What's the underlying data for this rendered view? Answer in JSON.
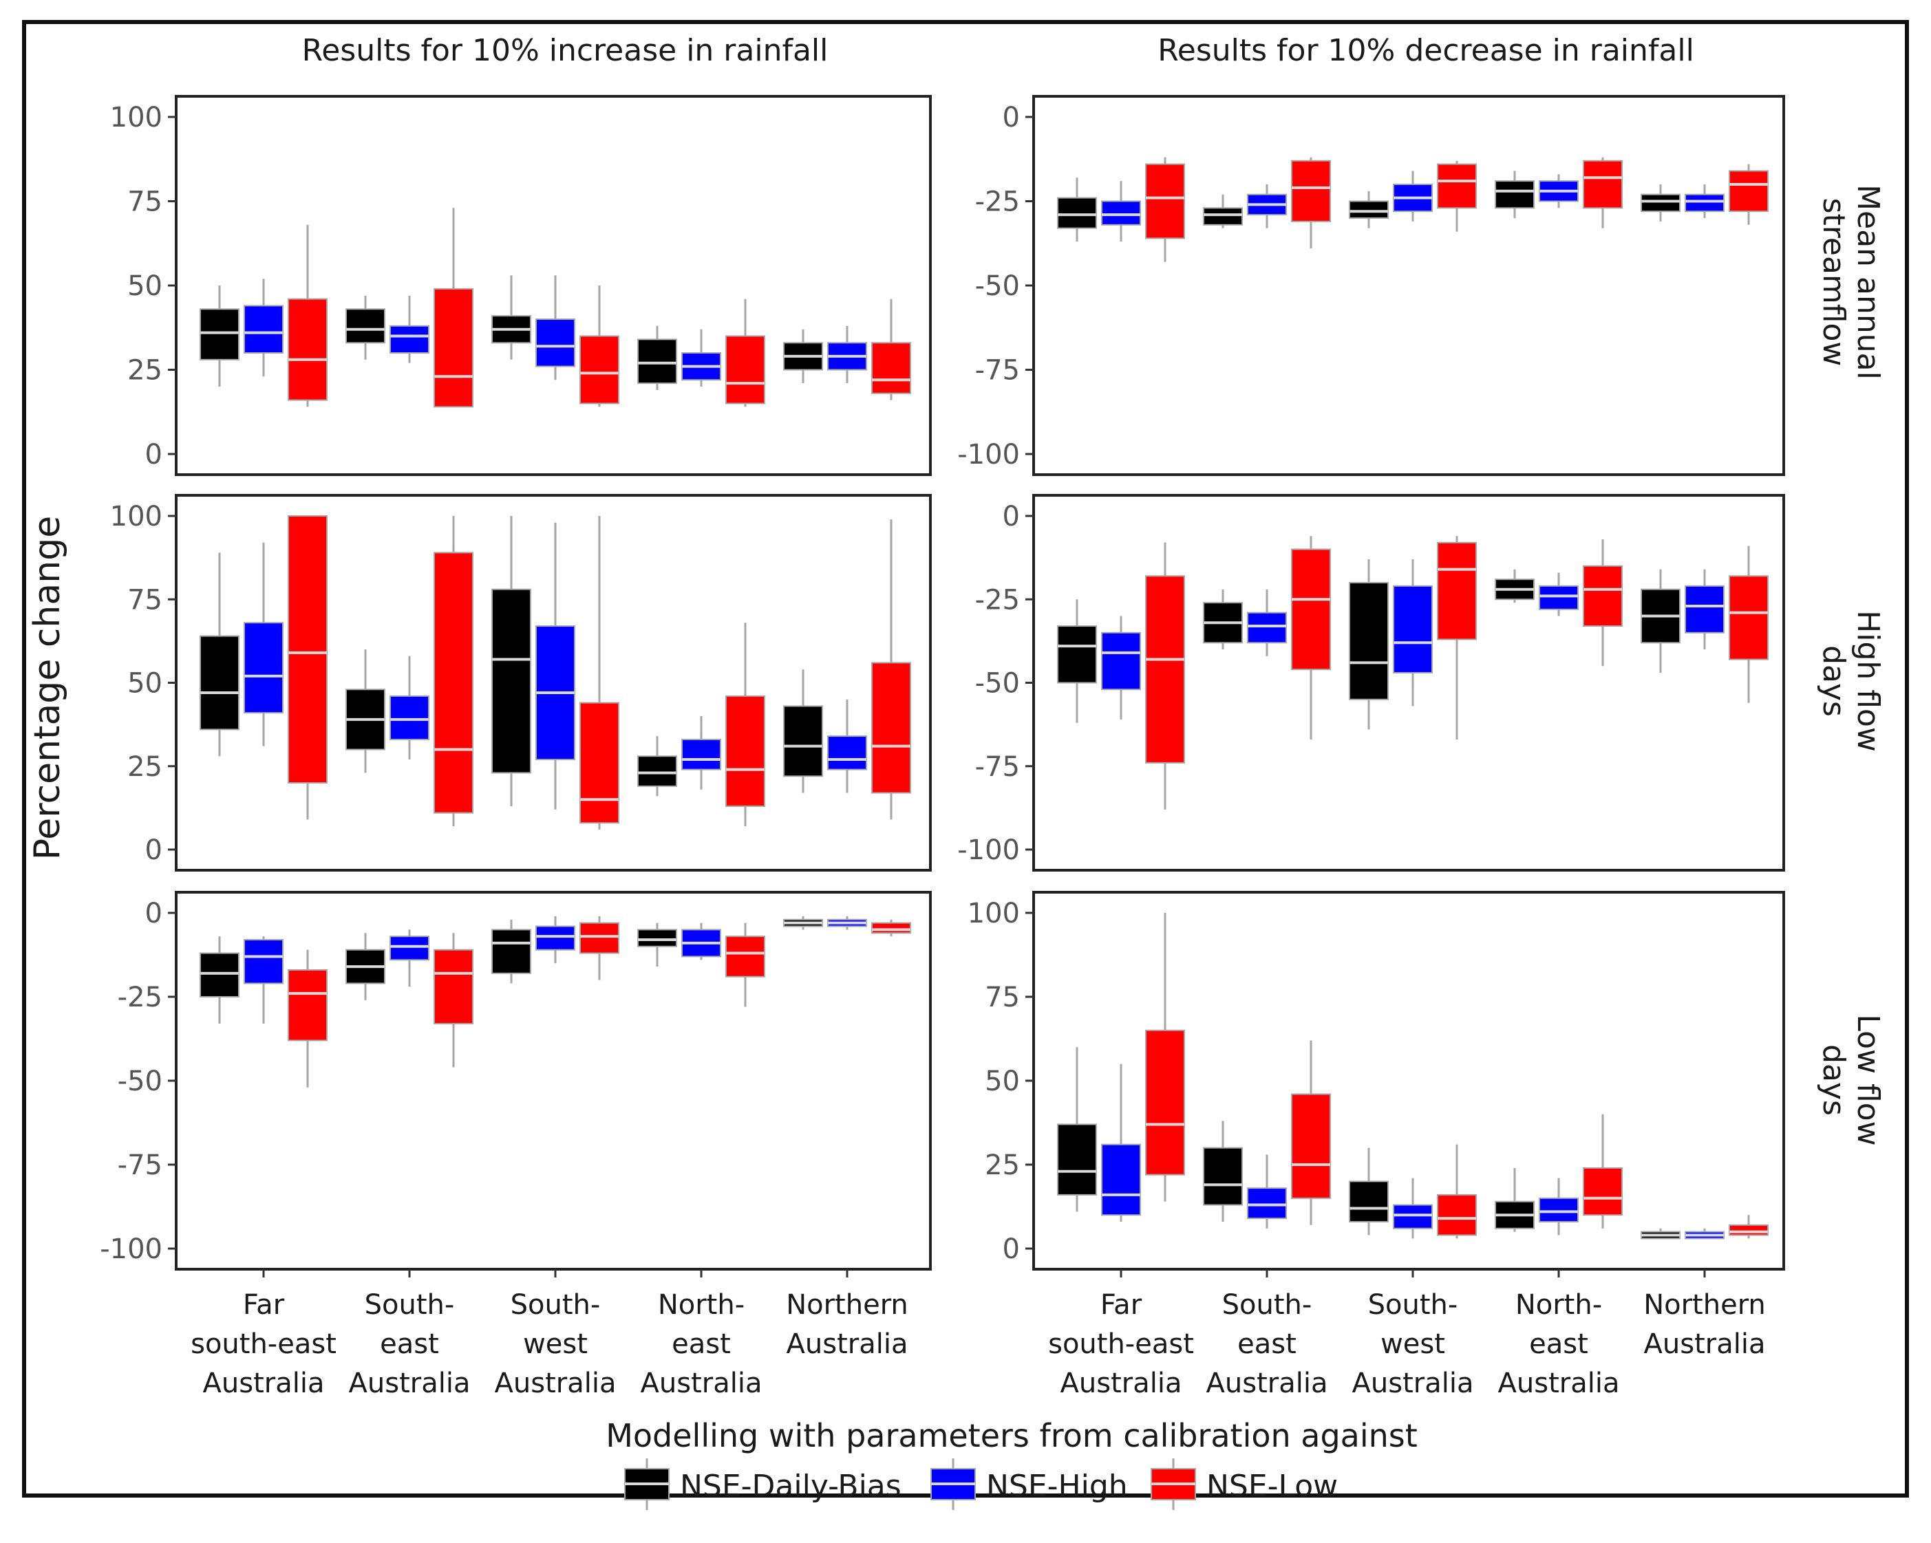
{
  "chart_data": {
    "type": "box",
    "title": "",
    "ylabel": "Percentage change",
    "column_titles": [
      "Results for 10% increase in rainfall",
      "Results for 10% decrease in rainfall"
    ],
    "row_labels": [
      [
        "Mean annual",
        "streamflow"
      ],
      [
        "High flow",
        "days"
      ],
      [
        "Low flow",
        "days"
      ]
    ],
    "categories": [
      [
        "Far",
        "south-east",
        "Australia"
      ],
      [
        "South-",
        "east",
        "Australia"
      ],
      [
        "South-",
        "west",
        "Australia"
      ],
      [
        "North-",
        "east",
        "Australia"
      ],
      [
        "Northern",
        "Australia"
      ]
    ],
    "legend": {
      "title": "Modelling with parameters from calibration against",
      "entries": [
        {
          "name": "NSE-Daily-Bias",
          "color": "#000000",
          "median_color": "#d9d9d9"
        },
        {
          "name": "NSE-High",
          "color": "#0000ff",
          "median_color": "#d9d9d9"
        },
        {
          "name": "NSE-Low",
          "color": "#ff0000",
          "median_color": "#d9d9d9"
        }
      ]
    },
    "panels": [
      {
        "row": 0,
        "col": 0,
        "ylim": [
          0,
          100
        ],
        "yticks": [
          0,
          25,
          50,
          75,
          100
        ],
        "series": [
          {
            "name": "NSE-Daily-Bias",
            "boxes": [
              [
                20,
                28,
                36,
                43,
                50
              ],
              [
                28,
                33,
                37,
                43,
                47
              ],
              [
                28,
                33,
                37,
                41,
                53
              ],
              [
                19,
                21,
                27,
                34,
                38
              ],
              [
                21,
                25,
                29,
                33,
                37
              ]
            ]
          },
          {
            "name": "NSE-High",
            "boxes": [
              [
                23,
                30,
                36,
                44,
                52
              ],
              [
                27,
                30,
                35,
                38,
                47
              ],
              [
                22,
                26,
                32,
                40,
                53
              ],
              [
                20,
                22,
                26,
                30,
                37
              ],
              [
                21,
                25,
                29,
                33,
                38
              ]
            ]
          },
          {
            "name": "NSE-Low",
            "boxes": [
              [
                14,
                16,
                28,
                46,
                68
              ],
              [
                14,
                14,
                23,
                49,
                73
              ],
              [
                14,
                15,
                24,
                35,
                50
              ],
              [
                14,
                15,
                21,
                35,
                46
              ],
              [
                16,
                18,
                22,
                33,
                46
              ]
            ]
          }
        ]
      },
      {
        "row": 0,
        "col": 1,
        "ylim": [
          -100,
          0
        ],
        "yticks": [
          -100,
          -75,
          -50,
          -25,
          0
        ],
        "series": [
          {
            "name": "NSE-Daily-Bias",
            "boxes": [
              [
                -37,
                -33,
                -29,
                -24,
                -18
              ],
              [
                -33,
                -32,
                -29,
                -27,
                -23
              ],
              [
                -33,
                -30,
                -28,
                -25,
                -22
              ],
              [
                -30,
                -27,
                -22,
                -19,
                -16
              ],
              [
                -31,
                -28,
                -25,
                -23,
                -20
              ]
            ]
          },
          {
            "name": "NSE-High",
            "boxes": [
              [
                -37,
                -32,
                -29,
                -25,
                -19
              ],
              [
                -33,
                -29,
                -26,
                -23,
                -20
              ],
              [
                -31,
                -28,
                -24,
                -20,
                -16
              ],
              [
                -27,
                -25,
                -22,
                -19,
                -17
              ],
              [
                -30,
                -28,
                -25,
                -23,
                -20
              ]
            ]
          },
          {
            "name": "NSE-Low",
            "boxes": [
              [
                -43,
                -36,
                -24,
                -14,
                -12
              ],
              [
                -39,
                -31,
                -21,
                -13,
                -12
              ],
              [
                -34,
                -27,
                -19,
                -14,
                -13
              ],
              [
                -33,
                -27,
                -18,
                -13,
                -12
              ],
              [
                -32,
                -28,
                -20,
                -16,
                -14
              ]
            ]
          }
        ]
      },
      {
        "row": 1,
        "col": 0,
        "ylim": [
          0,
          100
        ],
        "yticks": [
          0,
          25,
          50,
          75,
          100
        ],
        "series": [
          {
            "name": "NSE-Daily-Bias",
            "boxes": [
              [
                28,
                36,
                47,
                64,
                89
              ],
              [
                23,
                30,
                39,
                48,
                60
              ],
              [
                13,
                23,
                57,
                78,
                100
              ],
              [
                16,
                19,
                23,
                28,
                34
              ],
              [
                17,
                22,
                31,
                43,
                54
              ]
            ]
          },
          {
            "name": "NSE-High",
            "boxes": [
              [
                31,
                41,
                52,
                68,
                92
              ],
              [
                27,
                33,
                39,
                46,
                58
              ],
              [
                12,
                27,
                47,
                67,
                98
              ],
              [
                18,
                24,
                27,
                33,
                40
              ],
              [
                17,
                24,
                27,
                34,
                45
              ]
            ]
          },
          {
            "name": "NSE-Low",
            "boxes": [
              [
                9,
                20,
                59,
                100,
                100
              ],
              [
                7,
                11,
                30,
                89,
                100
              ],
              [
                6,
                8,
                15,
                44,
                100
              ],
              [
                7,
                13,
                24,
                46,
                68
              ],
              [
                9,
                17,
                31,
                56,
                99
              ]
            ]
          }
        ]
      },
      {
        "row": 1,
        "col": 1,
        "ylim": [
          -100,
          0
        ],
        "yticks": [
          -100,
          -75,
          -50,
          -25,
          0
        ],
        "series": [
          {
            "name": "NSE-Daily-Bias",
            "boxes": [
              [
                -62,
                -50,
                -39,
                -33,
                -25
              ],
              [
                -40,
                -38,
                -32,
                -26,
                -22
              ],
              [
                -64,
                -55,
                -44,
                -20,
                -13
              ],
              [
                -26,
                -25,
                -22,
                -19,
                -16
              ],
              [
                -47,
                -38,
                -30,
                -22,
                -16
              ]
            ]
          },
          {
            "name": "NSE-High",
            "boxes": [
              [
                -61,
                -52,
                -41,
                -35,
                -30
              ],
              [
                -42,
                -38,
                -33,
                -29,
                -22
              ],
              [
                -57,
                -47,
                -38,
                -21,
                -13
              ],
              [
                -30,
                -28,
                -24,
                -21,
                -17
              ],
              [
                -40,
                -35,
                -27,
                -21,
                -16
              ]
            ]
          },
          {
            "name": "NSE-Low",
            "boxes": [
              [
                -88,
                -74,
                -43,
                -18,
                -8
              ],
              [
                -67,
                -46,
                -25,
                -10,
                -6
              ],
              [
                -67,
                -37,
                -16,
                -8,
                -6
              ],
              [
                -45,
                -33,
                -22,
                -15,
                -7
              ],
              [
                -56,
                -43,
                -29,
                -18,
                -9
              ]
            ]
          }
        ]
      },
      {
        "row": 2,
        "col": 0,
        "ylim": [
          -100,
          0
        ],
        "yticks": [
          -100,
          -75,
          -50,
          -25,
          0
        ],
        "series": [
          {
            "name": "NSE-Daily-Bias",
            "boxes": [
              [
                -33,
                -25,
                -18,
                -12,
                -7
              ],
              [
                -26,
                -21,
                -16,
                -11,
                -6
              ],
              [
                -21,
                -18,
                -9,
                -5,
                -2
              ],
              [
                -16,
                -10,
                -8,
                -5,
                -3
              ],
              [
                -5,
                -4,
                -3,
                -2,
                -1
              ]
            ]
          },
          {
            "name": "NSE-High",
            "boxes": [
              [
                -33,
                -21,
                -13,
                -8,
                -7
              ],
              [
                -22,
                -14,
                -10,
                -7,
                -5
              ],
              [
                -15,
                -11,
                -7,
                -4,
                -1
              ],
              [
                -14,
                -13,
                -9,
                -5,
                -3
              ],
              [
                -5,
                -4,
                -3,
                -2,
                -1
              ]
            ]
          },
          {
            "name": "NSE-Low",
            "boxes": [
              [
                -52,
                -38,
                -24,
                -17,
                -11
              ],
              [
                -46,
                -33,
                -18,
                -11,
                -6
              ],
              [
                -20,
                -12,
                -7,
                -3,
                -1
              ],
              [
                -28,
                -19,
                -12,
                -7,
                -3
              ],
              [
                -7,
                -6,
                -5,
                -3,
                -2
              ]
            ]
          }
        ]
      },
      {
        "row": 2,
        "col": 1,
        "ylim": [
          0,
          100
        ],
        "yticks": [
          0,
          25,
          50,
          75,
          100
        ],
        "series": [
          {
            "name": "NSE-Daily-Bias",
            "boxes": [
              [
                11,
                16,
                23,
                37,
                60
              ],
              [
                8,
                13,
                19,
                30,
                38
              ],
              [
                4,
                8,
                12,
                20,
                30
              ],
              [
                5,
                6,
                10,
                14,
                24
              ],
              [
                3,
                3,
                4,
                5,
                6
              ]
            ]
          },
          {
            "name": "NSE-High",
            "boxes": [
              [
                8,
                10,
                16,
                31,
                55
              ],
              [
                6,
                9,
                13,
                18,
                28
              ],
              [
                3,
                6,
                10,
                13,
                21
              ],
              [
                4,
                8,
                11,
                15,
                21
              ],
              [
                3,
                3,
                4,
                5,
                6
              ]
            ]
          },
          {
            "name": "NSE-Low",
            "boxes": [
              [
                14,
                22,
                37,
                65,
                100
              ],
              [
                7,
                15,
                25,
                46,
                62
              ],
              [
                3,
                4,
                9,
                16,
                31
              ],
              [
                6,
                10,
                15,
                24,
                40
              ],
              [
                3,
                4,
                5,
                7,
                10
              ]
            ]
          }
        ]
      }
    ]
  }
}
